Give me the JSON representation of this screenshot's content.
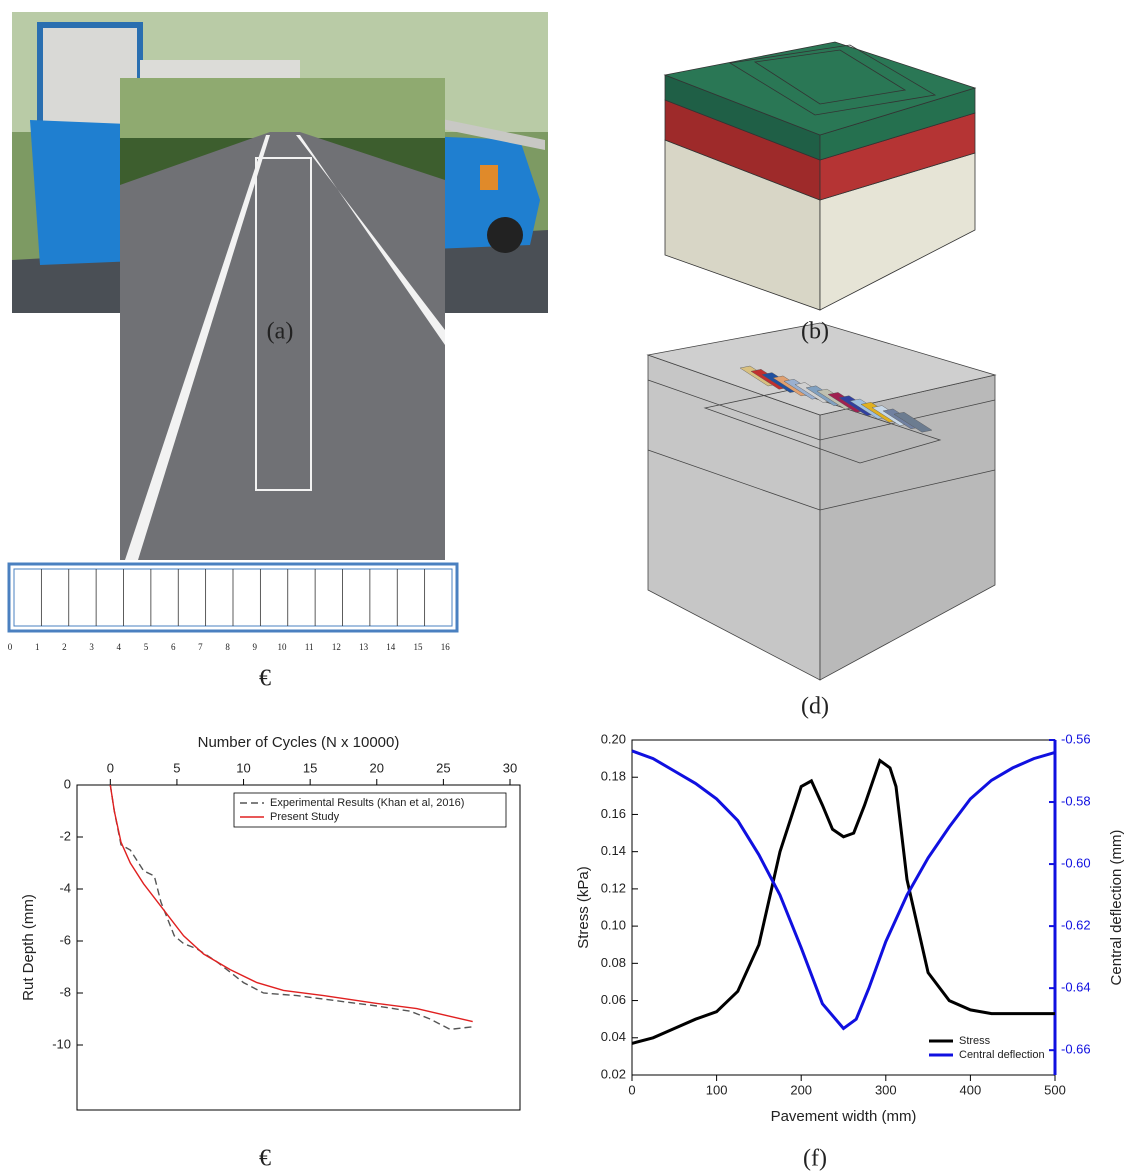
{
  "panel_labels": [
    "(a)",
    "(b)",
    "€",
    "(d)",
    "€",
    "(f)"
  ],
  "scale_labels": [
    0,
    1,
    2,
    3,
    4,
    5,
    6,
    7,
    8,
    9,
    10,
    11,
    12,
    13,
    14,
    15,
    16
  ],
  "chart_data": [
    {
      "type": "line",
      "x_label": "Number of Cycles (N x 10000)",
      "x_axis_position": "top",
      "y_label": "Rut Depth (mm)",
      "xlim": [
        -2.5,
        30.75
      ],
      "xticks": [
        0,
        5,
        10,
        15,
        20,
        25,
        30
      ],
      "ylim": [
        -12.5,
        0
      ],
      "yticks": [
        0,
        -2,
        -4,
        -6,
        -8,
        -10
      ],
      "legend": "upper right",
      "series": [
        {
          "name": "Experimental Results (Khan et al, 2016)",
          "color": "#555555",
          "dash": true,
          "x": [
            0,
            0.3,
            0.8,
            1.5,
            2.5,
            3.3,
            3.8,
            4.8,
            5.5,
            6.5,
            8,
            9,
            10,
            11.5,
            14,
            17,
            20,
            22.5,
            24,
            25.5,
            27.2
          ],
          "values": [
            0,
            -1,
            -2.3,
            -2.5,
            -3.3,
            -3.5,
            -4.5,
            -5.8,
            -6.1,
            -6.3,
            -6.8,
            -7.2,
            -7.6,
            -8,
            -8.1,
            -8.3,
            -8.5,
            -8.7,
            -9,
            -9.4,
            -9.3
          ]
        },
        {
          "name": "Present Study",
          "color": "#e02020",
          "x": [
            0,
            0.3,
            0.8,
            1.5,
            2.5,
            4,
            5.5,
            7,
            9,
            11,
            13,
            16,
            20,
            23,
            27.2
          ],
          "values": [
            0,
            -1,
            -2.2,
            -3,
            -3.8,
            -4.8,
            -5.8,
            -6.5,
            -7.1,
            -7.6,
            -7.9,
            -8.1,
            -8.4,
            -8.6,
            -9.1
          ]
        }
      ]
    },
    {
      "type": "line",
      "x_label": "Pavement width (mm)",
      "x_axis_position": "bottom",
      "y_label": "Stress (kPa)",
      "y2_label": "Central deflection (mm)",
      "xlim": [
        0,
        500
      ],
      "xticks": [
        0,
        100,
        200,
        300,
        400,
        500
      ],
      "ylim": [
        0.02,
        0.2
      ],
      "yticks": [
        0.02,
        0.04,
        0.06,
        0.08,
        {
          "value": 0.1,
          "label": "0.10"
        },
        0.12,
        0.14,
        0.16,
        0.18,
        {
          "value": 0.2,
          "label": "0.20"
        }
      ],
      "y2lim": [
        -0.668,
        -0.56
      ],
      "y2ticks": [
        -0.56,
        -0.58,
        {
          "value": -0.6,
          "label": "-0.60"
        },
        -0.62,
        -0.64,
        -0.66
      ],
      "y2_color": "#1010e0",
      "legend": "lower right",
      "series": [
        {
          "name": "Stress",
          "color": "#000000",
          "x": [
            0,
            25,
            50,
            75,
            100,
            125,
            150,
            175,
            200,
            212,
            225,
            237,
            250,
            262,
            275,
            293,
            305,
            312,
            325,
            350,
            375,
            400,
            425,
            450,
            475,
            500
          ],
          "values": [
            0.037,
            0.04,
            0.045,
            0.05,
            0.054,
            0.065,
            0.09,
            0.14,
            0.175,
            0.178,
            0.165,
            0.152,
            0.148,
            0.15,
            0.165,
            0.189,
            0.185,
            0.175,
            0.125,
            0.075,
            0.06,
            0.055,
            0.053,
            0.053,
            0.053,
            0.053
          ]
        },
        {
          "name": "Central deflection",
          "color": "#1010e0",
          "axis": "y2",
          "x": [
            0,
            25,
            50,
            75,
            100,
            125,
            150,
            175,
            200,
            225,
            250,
            265,
            280,
            300,
            325,
            350,
            375,
            400,
            425,
            450,
            475,
            500
          ],
          "values": [
            -0.5635,
            -0.566,
            -0.57,
            -0.574,
            -0.579,
            -0.586,
            -0.597,
            -0.61,
            -0.627,
            -0.645,
            -0.653,
            -0.65,
            -0.64,
            -0.625,
            -0.61,
            -0.598,
            -0.588,
            -0.579,
            -0.573,
            -0.569,
            -0.566,
            -0.564
          ]
        }
      ]
    }
  ]
}
